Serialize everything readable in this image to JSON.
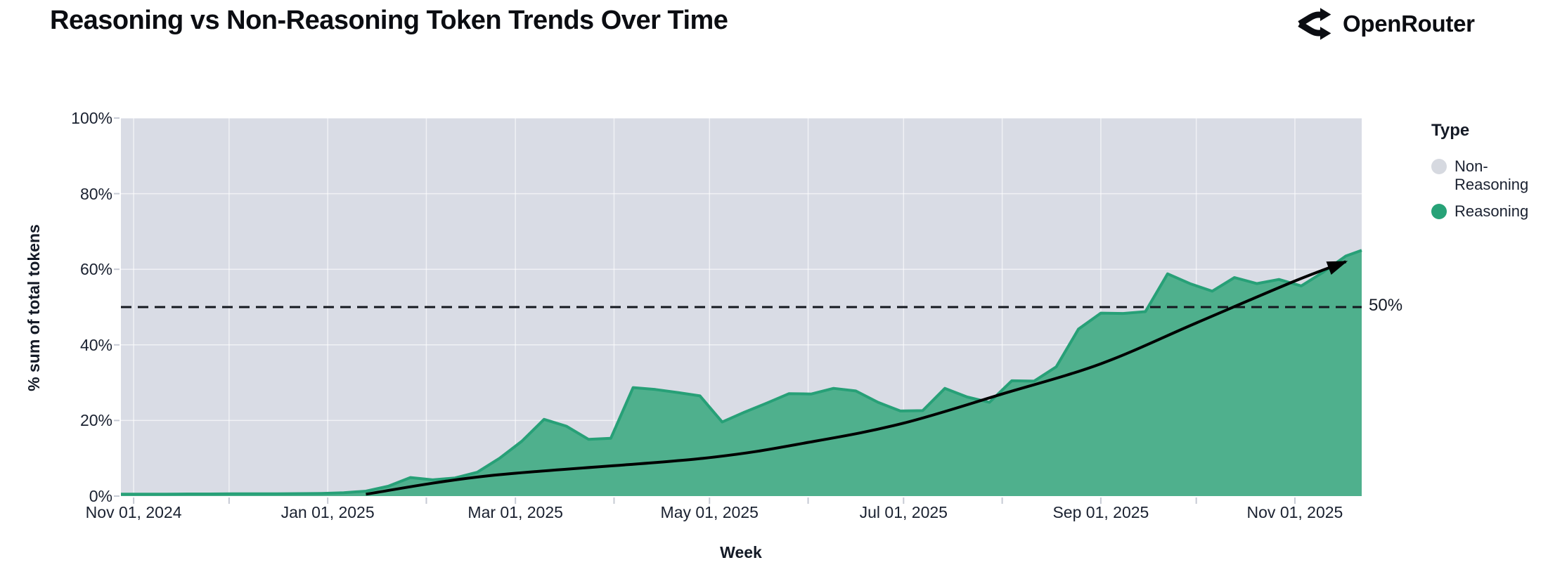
{
  "header": {
    "title": "Reasoning vs Non-Reasoning Token Trends Over Time",
    "brand_name": "OpenRouter"
  },
  "chart_data": {
    "type": "area",
    "stacked_percent": true,
    "title": "Reasoning vs Non-Reasoning Token Trends Over Time",
    "xlabel": "Week",
    "ylabel": "% sum of total tokens",
    "ylim": [
      0,
      100
    ],
    "grid": "on",
    "legend_position": "right",
    "x_domain": [
      "2024-10-28",
      "2025-11-22"
    ],
    "y_ticks": [
      {
        "v": 0,
        "label": "0%"
      },
      {
        "v": 20,
        "label": "20%"
      },
      {
        "v": 40,
        "label": "40%"
      },
      {
        "v": 60,
        "label": "60%"
      },
      {
        "v": 80,
        "label": "80%"
      },
      {
        "v": 100,
        "label": "100%"
      }
    ],
    "x_ticks": [
      {
        "d": "2024-11-01",
        "label": "Nov 01, 2024"
      },
      {
        "d": "2025-01-01",
        "label": "Jan 01, 2025"
      },
      {
        "d": "2025-03-01",
        "label": "Mar 01, 2025"
      },
      {
        "d": "2025-05-01",
        "label": "May 01, 2025"
      },
      {
        "d": "2025-07-01",
        "label": "Jul 01, 2025"
      },
      {
        "d": "2025-09-01",
        "label": "Sep 01, 2025"
      },
      {
        "d": "2025-11-01",
        "label": "Nov 01, 2025"
      }
    ],
    "month_gridlines": [
      "2024-11-01",
      "2024-12-01",
      "2025-01-01",
      "2025-02-01",
      "2025-03-01",
      "2025-04-01",
      "2025-05-01",
      "2025-06-01",
      "2025-07-01",
      "2025-08-01",
      "2025-09-01",
      "2025-10-01",
      "2025-11-01"
    ],
    "legend": {
      "title": "Type",
      "items": [
        {
          "label": "Non-Reasoning",
          "color": "#d6d9e0"
        },
        {
          "label": "Reasoning",
          "color": "#27a277"
        }
      ]
    },
    "reference_line": {
      "value": 50,
      "label": "50%",
      "style": "dashed",
      "color": "#14181f"
    },
    "series": [
      {
        "name": "Reasoning",
        "unit": "% of total tokens",
        "fill": "#4fb08d",
        "stroke": "#27a077",
        "points": [
          {
            "d": "2024-10-28",
            "v": 0.5
          },
          {
            "d": "2024-11-04",
            "v": 0.5
          },
          {
            "d": "2024-11-11",
            "v": 0.5
          },
          {
            "d": "2024-11-18",
            "v": 0.55
          },
          {
            "d": "2024-11-25",
            "v": 0.55
          },
          {
            "d": "2024-12-02",
            "v": 0.6
          },
          {
            "d": "2024-12-09",
            "v": 0.6
          },
          {
            "d": "2024-12-16",
            "v": 0.6
          },
          {
            "d": "2024-12-23",
            "v": 0.65
          },
          {
            "d": "2024-12-30",
            "v": 0.7
          },
          {
            "d": "2025-01-06",
            "v": 0.9
          },
          {
            "d": "2025-01-13",
            "v": 1.3
          },
          {
            "d": "2025-01-20",
            "v": 2.6
          },
          {
            "d": "2025-01-27",
            "v": 4.9
          },
          {
            "d": "2025-02-03",
            "v": 4.3
          },
          {
            "d": "2025-02-10",
            "v": 4.8
          },
          {
            "d": "2025-02-17",
            "v": 6.3
          },
          {
            "d": "2025-02-24",
            "v": 10.0
          },
          {
            "d": "2025-03-03",
            "v": 14.5
          },
          {
            "d": "2025-03-10",
            "v": 20.3
          },
          {
            "d": "2025-03-17",
            "v": 18.5
          },
          {
            "d": "2025-03-24",
            "v": 15.0
          },
          {
            "d": "2025-03-31",
            "v": 15.3
          },
          {
            "d": "2025-04-07",
            "v": 28.7
          },
          {
            "d": "2025-04-14",
            "v": 28.2
          },
          {
            "d": "2025-04-21",
            "v": 27.4
          },
          {
            "d": "2025-04-28",
            "v": 26.5
          },
          {
            "d": "2025-05-05",
            "v": 19.6
          },
          {
            "d": "2025-05-12",
            "v": 22.2
          },
          {
            "d": "2025-05-19",
            "v": 24.6
          },
          {
            "d": "2025-05-26",
            "v": 27.1
          },
          {
            "d": "2025-06-02",
            "v": 27.0
          },
          {
            "d": "2025-06-09",
            "v": 28.5
          },
          {
            "d": "2025-06-16",
            "v": 27.8
          },
          {
            "d": "2025-06-23",
            "v": 24.8
          },
          {
            "d": "2025-06-30",
            "v": 22.5
          },
          {
            "d": "2025-07-07",
            "v": 22.6
          },
          {
            "d": "2025-07-14",
            "v": 28.5
          },
          {
            "d": "2025-07-21",
            "v": 26.2
          },
          {
            "d": "2025-07-28",
            "v": 24.8
          },
          {
            "d": "2025-08-04",
            "v": 30.5
          },
          {
            "d": "2025-08-11",
            "v": 30.4
          },
          {
            "d": "2025-08-18",
            "v": 34.2
          },
          {
            "d": "2025-08-25",
            "v": 44.2
          },
          {
            "d": "2025-09-01",
            "v": 48.4
          },
          {
            "d": "2025-09-08",
            "v": 48.3
          },
          {
            "d": "2025-09-15",
            "v": 48.8
          },
          {
            "d": "2025-09-22",
            "v": 58.8
          },
          {
            "d": "2025-09-29",
            "v": 56.2
          },
          {
            "d": "2025-10-06",
            "v": 54.2
          },
          {
            "d": "2025-10-13",
            "v": 57.8
          },
          {
            "d": "2025-10-20",
            "v": 56.2
          },
          {
            "d": "2025-10-27",
            "v": 57.3
          },
          {
            "d": "2025-11-03",
            "v": 55.6
          },
          {
            "d": "2025-11-10",
            "v": 59.3
          },
          {
            "d": "2025-11-17",
            "v": 63.5
          },
          {
            "d": "2025-11-22",
            "v": 65.0
          }
        ]
      },
      {
        "name": "Non-Reasoning",
        "unit": "% of total tokens",
        "fill": "#d9dce5",
        "note": "remainder to 100% (stacked above Reasoning)"
      }
    ],
    "trend_arrow": {
      "color": "#000000",
      "points": [
        {
          "d": "2025-01-13",
          "v": 0.5
        },
        {
          "d": "2025-02-21",
          "v": 5.4
        },
        {
          "d": "2025-04-29",
          "v": 10.0
        },
        {
          "d": "2025-06-03",
          "v": 14.5
        },
        {
          "d": "2025-07-01",
          "v": 19.3
        },
        {
          "d": "2025-08-01",
          "v": 27.0
        },
        {
          "d": "2025-09-01",
          "v": 35.0
        },
        {
          "d": "2025-10-01",
          "v": 45.8
        },
        {
          "d": "2025-11-01",
          "v": 56.9
        },
        {
          "d": "2025-11-17",
          "v": 62.0
        }
      ]
    },
    "colors": {
      "plot_bg": "#d9dce5",
      "gridline": "rgba(255,255,255,0.6)",
      "tick": "#c6cad4",
      "text": "#1a2130"
    }
  }
}
